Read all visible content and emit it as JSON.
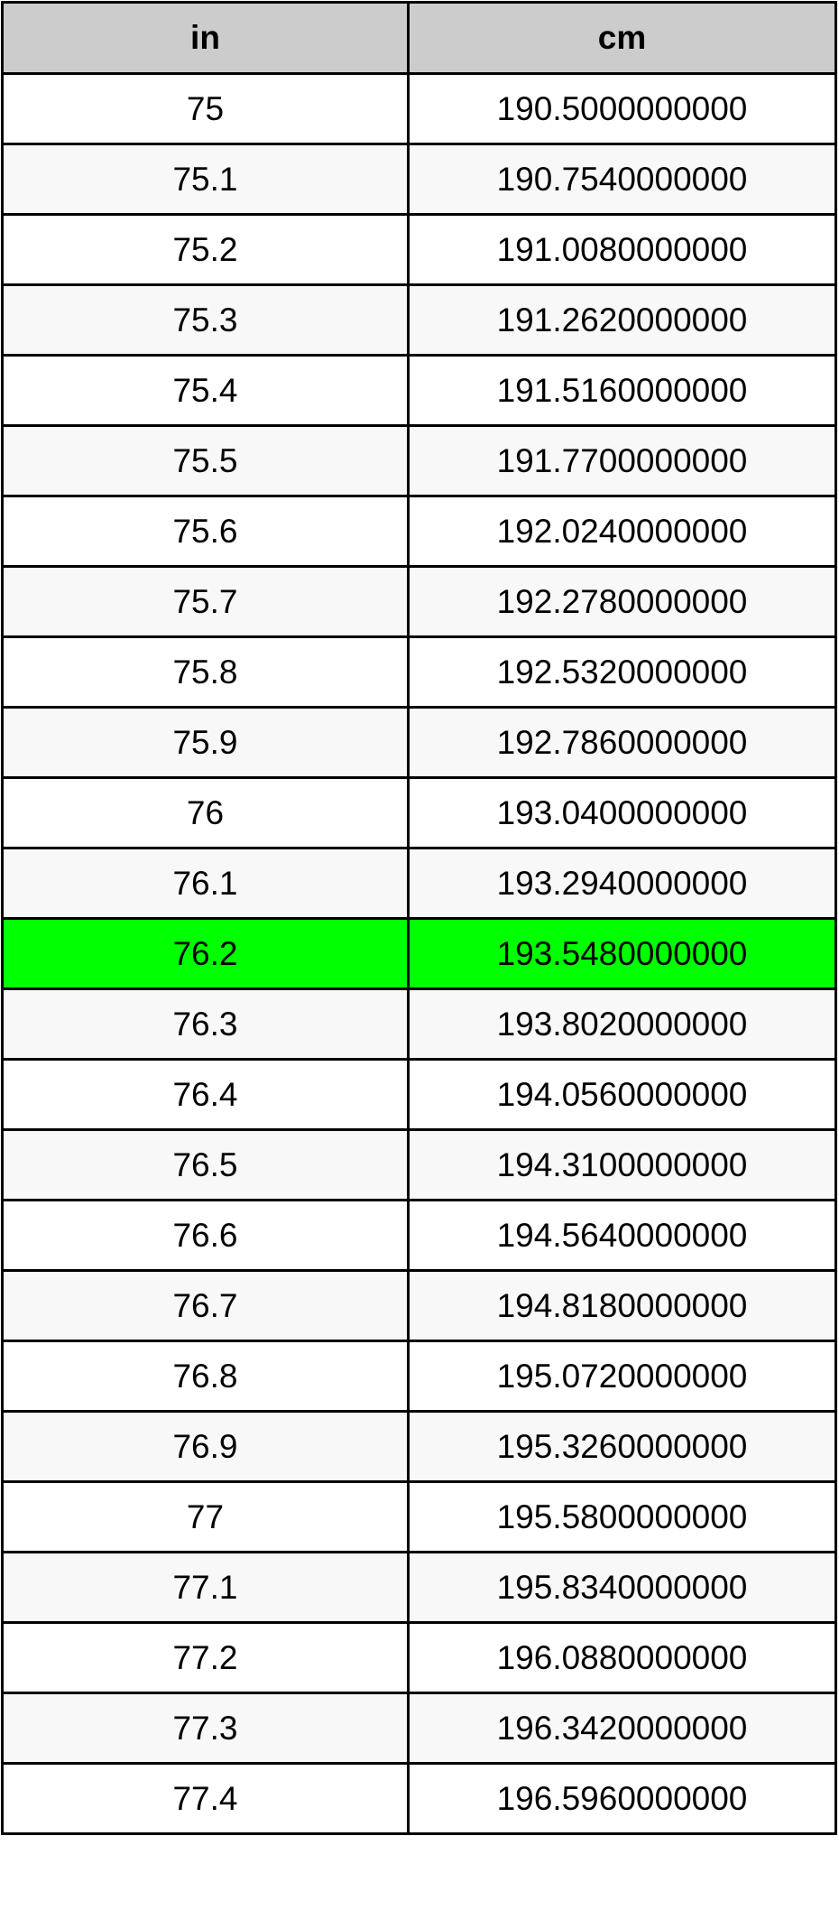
{
  "table": {
    "headers": [
      "in",
      "cm"
    ],
    "highlight_color": "#00ff00",
    "highlighted_row": "76.2",
    "rows": [
      [
        "75",
        "190.5000000000"
      ],
      [
        "75.1",
        "190.7540000000"
      ],
      [
        "75.2",
        "191.0080000000"
      ],
      [
        "75.3",
        "191.2620000000"
      ],
      [
        "75.4",
        "191.5160000000"
      ],
      [
        "75.5",
        "191.7700000000"
      ],
      [
        "75.6",
        "192.0240000000"
      ],
      [
        "75.7",
        "192.2780000000"
      ],
      [
        "75.8",
        "192.5320000000"
      ],
      [
        "75.9",
        "192.7860000000"
      ],
      [
        "76",
        "193.0400000000"
      ],
      [
        "76.1",
        "193.2940000000"
      ],
      [
        "76.2",
        "193.5480000000"
      ],
      [
        "76.3",
        "193.8020000000"
      ],
      [
        "76.4",
        "194.0560000000"
      ],
      [
        "76.5",
        "194.3100000000"
      ],
      [
        "76.6",
        "194.5640000000"
      ],
      [
        "76.7",
        "194.8180000000"
      ],
      [
        "76.8",
        "195.0720000000"
      ],
      [
        "76.9",
        "195.3260000000"
      ],
      [
        "77",
        "195.5800000000"
      ],
      [
        "77.1",
        "195.8340000000"
      ],
      [
        "77.2",
        "196.0880000000"
      ],
      [
        "77.3",
        "196.3420000000"
      ],
      [
        "77.4",
        "196.5960000000"
      ]
    ]
  }
}
